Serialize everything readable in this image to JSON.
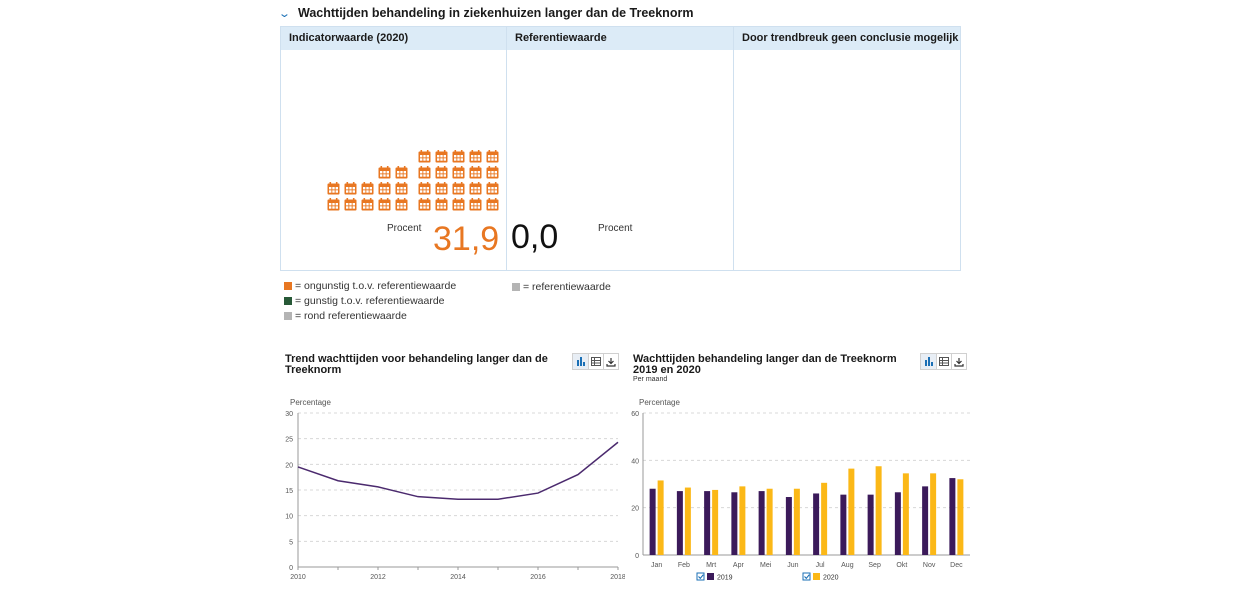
{
  "section": {
    "title": "Wachttijden behandeling in ziekenhuizen langer dan de Treeknorm"
  },
  "panels": [
    {
      "title": "Indicatorwaarde (2020)",
      "unit": "Procent",
      "value": "31,9"
    },
    {
      "title": "Referentiewaarde",
      "unit": "Procent",
      "value": "0,0"
    },
    {
      "title": "Door trendbreuk geen conclusie mogelijk"
    }
  ],
  "legend": {
    "left": [
      {
        "label": "= ongunstig t.o.v. referentiewaarde",
        "color": "#e87722"
      },
      {
        "label": "= gunstig t.o.v. referentiewaarde",
        "color": "#275937"
      },
      {
        "label": "= rond referentiewaarde",
        "color": "#b4b4b4"
      }
    ],
    "right": [
      {
        "label": "= referentiewaarde",
        "color": "#b4b4b4"
      }
    ]
  },
  "icons": {
    "calendar": "calendar-icon",
    "color": "#e87722"
  },
  "toolbar_icons": [
    "bar-chart-icon",
    "table-icon",
    "download-icon"
  ],
  "chart_data": [
    {
      "type": "line",
      "title": "Trend wachttijden voor behandeling langer dan de Treeknorm",
      "ylabel": "Percentage",
      "x": [
        2010,
        2011,
        2012,
        2013,
        2014,
        2015,
        2016,
        2017,
        2018
      ],
      "x_ticks": [
        "2010",
        "2012",
        "2014",
        "2016",
        "2018"
      ],
      "xlim": [
        2010,
        2018
      ],
      "y_ticks": [
        "0",
        "5",
        "10",
        "15",
        "20",
        "25",
        "30"
      ],
      "ylim": [
        0,
        30
      ],
      "series": [
        {
          "values": [
            19.5,
            16.8,
            15.6,
            13.7,
            13.2,
            13.2,
            14.4,
            18.0,
            24.3
          ],
          "color": "#4b2a6e"
        }
      ],
      "grid": true
    },
    {
      "type": "bar",
      "title": "Wachttijden behandeling langer dan de Treeknorm 2019 en 2020",
      "subtitle": "Per maand",
      "ylabel": "Percentage",
      "categories": [
        "Jan",
        "Feb",
        "Mrt",
        "Apr",
        "Mei",
        "Jun",
        "Jul",
        "Aug",
        "Sep",
        "Okt",
        "Nov",
        "Dec"
      ],
      "y_ticks": [
        "0",
        "20",
        "40",
        "60"
      ],
      "ylim": [
        0,
        60
      ],
      "series": [
        {
          "name": "2019",
          "color": "#3b1a5a",
          "values": [
            28,
            27,
            27,
            26.5,
            27,
            24.5,
            26,
            25.5,
            25.5,
            26.5,
            29,
            32.5
          ]
        },
        {
          "name": "2020",
          "color": "#fbb817",
          "values": [
            31.5,
            28.5,
            27.5,
            29,
            28,
            28,
            30.5,
            36.5,
            37.5,
            34.5,
            34.5,
            32
          ]
        }
      ],
      "legend": "bottom",
      "grid": true
    }
  ]
}
